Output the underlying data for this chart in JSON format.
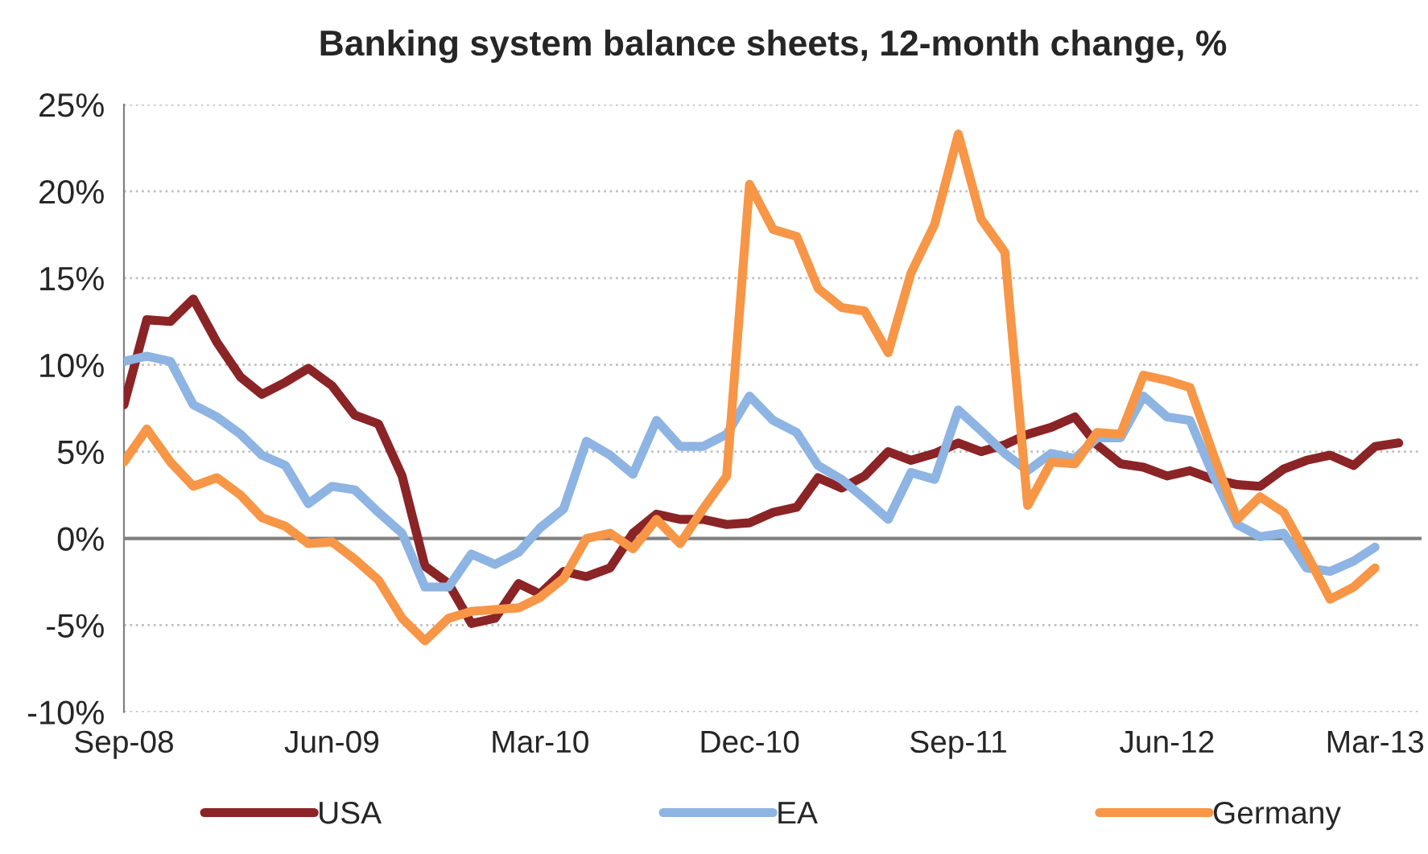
{
  "chart_data": {
    "type": "line",
    "title": "Banking system balance sheets, 12-month change, %",
    "x": [
      "2008-09",
      "2008-10",
      "2008-11",
      "2008-12",
      "2009-01",
      "2009-02",
      "2009-03",
      "2009-04",
      "2009-05",
      "2009-06",
      "2009-07",
      "2009-08",
      "2009-09",
      "2009-10",
      "2009-11",
      "2009-12",
      "2010-01",
      "2010-02",
      "2010-03",
      "2010-04",
      "2010-05",
      "2010-06",
      "2010-07",
      "2010-08",
      "2010-09",
      "2010-10",
      "2010-11",
      "2010-12",
      "2011-01",
      "2011-02",
      "2011-03",
      "2011-04",
      "2011-05",
      "2011-06",
      "2011-07",
      "2011-08",
      "2011-09",
      "2011-10",
      "2011-11",
      "2011-12",
      "2012-01",
      "2012-02",
      "2012-03",
      "2012-04",
      "2012-05",
      "2012-06",
      "2012-07",
      "2012-08",
      "2012-09",
      "2012-10",
      "2012-11",
      "2012-12",
      "2013-01",
      "2013-02",
      "2013-03",
      "2013-04"
    ],
    "series": [
      {
        "name": "USA",
        "color": "#8b2426",
        "values": [
          7.7,
          12.6,
          12.5,
          13.8,
          11.3,
          9.3,
          8.3,
          9.0,
          9.8,
          8.8,
          7.1,
          6.6,
          3.6,
          -1.6,
          -2.6,
          -4.9,
          -4.6,
          -2.6,
          -3.2,
          -1.9,
          -2.2,
          -1.7,
          0.3,
          1.4,
          1.1,
          1.1,
          0.8,
          0.9,
          1.5,
          1.8,
          3.5,
          2.9,
          3.6,
          5.0,
          4.5,
          4.9,
          5.5,
          5.0,
          5.4,
          6.0,
          6.4,
          7.0,
          5.4,
          4.3,
          4.1,
          3.6,
          3.9,
          3.4,
          3.1,
          3.0,
          4.0,
          4.5,
          4.8,
          4.2,
          5.3,
          5.5
        ]
      },
      {
        "name": "EA",
        "color": "#8db4e2",
        "values": [
          10.2,
          10.5,
          10.2,
          7.7,
          7.0,
          6.0,
          4.8,
          4.2,
          2.0,
          3.0,
          2.8,
          1.5,
          0.3,
          -2.8,
          -2.8,
          -0.9,
          -1.5,
          -0.8,
          0.6,
          1.7,
          5.6,
          4.8,
          3.7,
          6.8,
          5.3,
          5.3,
          6.0,
          8.2,
          6.8,
          6.1,
          4.2,
          3.4,
          2.3,
          1.1,
          3.8,
          3.4,
          7.4,
          6.2,
          4.9,
          3.9,
          4.9,
          4.6,
          5.8,
          5.8,
          8.2,
          7.0,
          6.8,
          3.6,
          0.8,
          0.1,
          0.3,
          -1.7,
          -1.9,
          -1.3,
          -0.5,
          null
        ]
      },
      {
        "name": "Germany",
        "color": "#f79646",
        "values": [
          4.4,
          6.3,
          4.4,
          3.0,
          3.5,
          2.5,
          1.2,
          0.7,
          -0.3,
          -0.2,
          -1.2,
          -2.4,
          -4.6,
          -5.9,
          -4.6,
          -4.2,
          -4.1,
          -4.0,
          -3.4,
          -2.3,
          0.0,
          0.3,
          -0.6,
          1.1,
          -0.3,
          1.7,
          3.6,
          20.4,
          17.8,
          17.4,
          14.4,
          13.3,
          13.1,
          10.7,
          15.3,
          18.1,
          23.3,
          18.4,
          16.5,
          1.9,
          4.4,
          4.3,
          6.1,
          6.0,
          9.4,
          9.1,
          8.7,
          4.8,
          1.1,
          2.4,
          1.5,
          -0.9,
          -3.5,
          -2.8,
          -1.7,
          null
        ]
      }
    ],
    "xlim": [
      "2008-09",
      "2013-05"
    ],
    "xticks": [
      {
        "value": "2008-09",
        "label": "Sep-08"
      },
      {
        "value": "2009-06",
        "label": "Jun-09"
      },
      {
        "value": "2010-03",
        "label": "Mar-10"
      },
      {
        "value": "2010-12",
        "label": "Dec-10"
      },
      {
        "value": "2011-09",
        "label": "Sep-11"
      },
      {
        "value": "2012-06",
        "label": "Jun-12"
      },
      {
        "value": "2013-03",
        "label": "Mar-13"
      }
    ],
    "ylim": [
      -10,
      25
    ],
    "yticks": [
      {
        "value": -10,
        "label": "-10%"
      },
      {
        "value": -5,
        "label": "-5%"
      },
      {
        "value": 0,
        "label": "0%"
      },
      {
        "value": 5,
        "label": "5%"
      },
      {
        "value": 10,
        "label": "10%"
      },
      {
        "value": 15,
        "label": "15%"
      },
      {
        "value": 20,
        "label": "20%"
      },
      {
        "value": 25,
        "label": "25%"
      }
    ],
    "ref_lines": [
      {
        "axis": "y",
        "value": 0,
        "color": "#808080"
      }
    ],
    "grid": "y",
    "legend": "bottom",
    "marker": "none",
    "line_style": "solid"
  }
}
